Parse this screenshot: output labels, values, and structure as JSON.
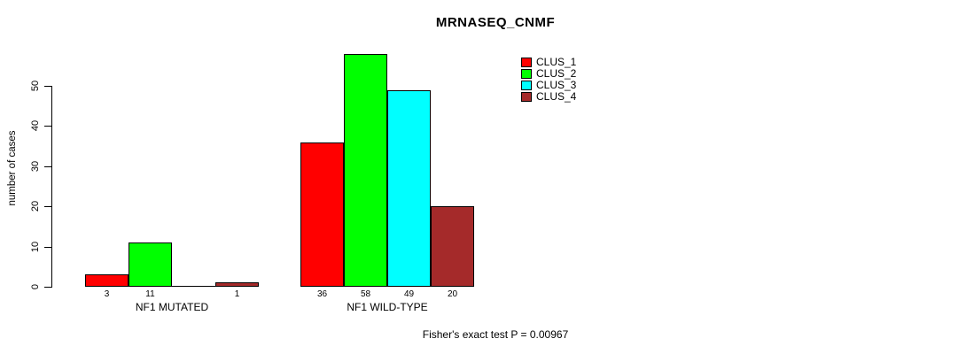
{
  "title": "MRNASEQ_CNMF",
  "footer": "Fisher's exact test P = 0.00967",
  "y_axis": {
    "label": "number of cases",
    "ticks": [
      0,
      10,
      20,
      30,
      40,
      50
    ]
  },
  "legend": {
    "items": [
      {
        "label": "CLUS_1",
        "color": "#FF0000"
      },
      {
        "label": "CLUS_2",
        "color": "#00FF00"
      },
      {
        "label": "CLUS_3",
        "color": "#00FFFF"
      },
      {
        "label": "CLUS_4",
        "color": "#A52A2A"
      }
    ]
  },
  "chart_data": {
    "type": "bar",
    "title": "MRNASEQ_CNMF",
    "ylabel": "number of cases",
    "xlabel": "",
    "categories": [
      "NF1 MUTATED",
      "NF1 WILD-TYPE"
    ],
    "series": [
      {
        "name": "CLUS_1",
        "color": "#FF0000",
        "values": [
          3,
          36
        ]
      },
      {
        "name": "CLUS_2",
        "color": "#00FF00",
        "values": [
          11,
          58
        ]
      },
      {
        "name": "CLUS_3",
        "color": "#00FFFF",
        "values": [
          0,
          49
        ]
      },
      {
        "name": "CLUS_4",
        "color": "#A52A2A",
        "values": [
          1,
          20
        ]
      }
    ],
    "bar_value_labels_shown": true,
    "zero_values_unlabeled": true,
    "yticks": [
      0,
      10,
      20,
      30,
      40,
      50
    ],
    "ylim": [
      0,
      58
    ],
    "grid": false,
    "legend_position": "top-right",
    "annotation": "Fisher's exact test P = 0.00967"
  }
}
